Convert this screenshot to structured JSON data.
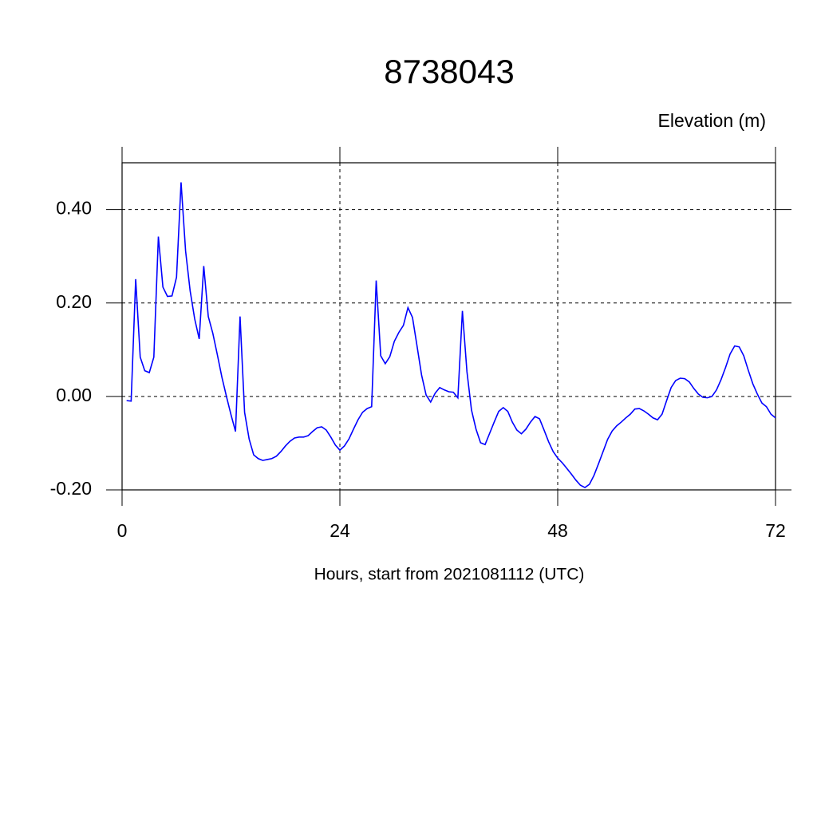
{
  "chart_data": {
    "type": "line",
    "title": "8738043",
    "subtitle": "Elevation (m)",
    "x_label": "Hours, start from 2021081112 (UTC)",
    "xlim": [
      0,
      72
    ],
    "xticks": [
      0,
      24,
      48,
      72
    ],
    "ylim": [
      -0.2,
      0.5
    ],
    "yticks": [
      {
        "value": -0.2,
        "label": "-0.20"
      },
      {
        "value": 0,
        "label": "0.00"
      },
      {
        "value": 0.2,
        "label": "0.20"
      },
      {
        "value": 0.4,
        "label": "0.40"
      }
    ],
    "grid": true,
    "x": [
      0.5,
      1,
      1.5,
      2,
      2.5,
      3,
      3.5,
      4,
      4.5,
      5,
      5.5,
      6,
      6.5,
      7,
      7.5,
      8,
      8.5,
      9,
      9.5,
      10,
      10.5,
      11,
      11.5,
      12,
      12.5,
      13,
      13.5,
      14,
      14.5,
      15,
      15.5,
      16,
      16.5,
      17,
      17.5,
      18,
      18.5,
      19,
      19.5,
      20,
      20.5,
      21,
      21.5,
      22,
      22.5,
      23,
      23.5,
      24,
      24.5,
      25,
      25.5,
      26,
      26.5,
      27,
      27.5,
      28,
      28.5,
      29,
      29.5,
      30,
      30.5,
      31,
      31.5,
      32,
      32.5,
      33,
      33.5,
      34,
      34.5,
      35,
      35.5,
      36,
      36.5,
      37,
      37.5,
      38,
      38.5,
      39,
      39.5,
      40,
      40.5,
      41,
      41.5,
      42,
      42.5,
      43,
      43.5,
      44,
      44.5,
      45,
      45.5,
      46,
      46.5,
      47,
      47.5,
      48,
      48.5,
      49,
      49.5,
      50,
      50.5,
      51,
      51.5,
      52,
      52.5,
      53,
      53.5,
      54,
      54.5,
      55,
      55.5,
      56,
      56.5,
      57,
      57.5,
      58,
      58.5,
      59,
      59.5,
      60,
      60.5,
      61,
      61.5,
      62,
      62.5,
      63,
      63.5,
      64,
      64.5,
      65,
      65.5,
      66,
      66.5,
      67,
      67.5,
      68,
      68.5,
      69,
      69.5,
      70,
      70.5,
      71,
      71.5,
      72
    ],
    "series": [
      {
        "color": "#0000ff",
        "values": [
          -0.009,
          -0.01,
          0.251,
          0.084,
          0.055,
          0.051,
          0.084,
          0.342,
          0.234,
          0.214,
          0.215,
          0.255,
          0.458,
          0.311,
          0.226,
          0.166,
          0.123,
          0.279,
          0.171,
          0.135,
          0.089,
          0.041,
          0,
          -0.039,
          -0.075,
          0.171,
          -0.034,
          -0.091,
          -0.125,
          -0.133,
          -0.137,
          -0.135,
          -0.133,
          -0.128,
          -0.118,
          -0.106,
          -0.096,
          -0.089,
          -0.087,
          -0.087,
          -0.084,
          -0.075,
          -0.067,
          -0.065,
          -0.072,
          -0.087,
          -0.104,
          -0.115,
          -0.106,
          -0.091,
          -0.07,
          -0.05,
          -0.034,
          -0.026,
          -0.022,
          0.248,
          0.087,
          0.07,
          0.085,
          0.118,
          0.137,
          0.152,
          0.19,
          0.169,
          0.108,
          0.046,
          0.003,
          -0.012,
          0.007,
          0.019,
          0.014,
          0.01,
          0.009,
          -0.003,
          0.183,
          0.053,
          -0.029,
          -0.07,
          -0.099,
          -0.103,
          -0.079,
          -0.055,
          -0.032,
          -0.024,
          -0.032,
          -0.055,
          -0.072,
          -0.08,
          -0.07,
          -0.055,
          -0.043,
          -0.048,
          -0.072,
          -0.097,
          -0.118,
          -0.132,
          -0.142,
          -0.154,
          -0.166,
          -0.179,
          -0.19,
          -0.195,
          -0.188,
          -0.169,
          -0.144,
          -0.118,
          -0.092,
          -0.074,
          -0.063,
          -0.055,
          -0.046,
          -0.038,
          -0.027,
          -0.026,
          -0.031,
          -0.038,
          -0.046,
          -0.05,
          -0.038,
          -0.009,
          0.019,
          0.034,
          0.039,
          0.038,
          0.031,
          0.017,
          0.005,
          -0.002,
          -0.003,
          0,
          0.014,
          0.036,
          0.062,
          0.091,
          0.108,
          0.106,
          0.087,
          0.056,
          0.027,
          0.005,
          -0.014,
          -0.022,
          -0.038,
          -0.046
        ]
      }
    ]
  }
}
